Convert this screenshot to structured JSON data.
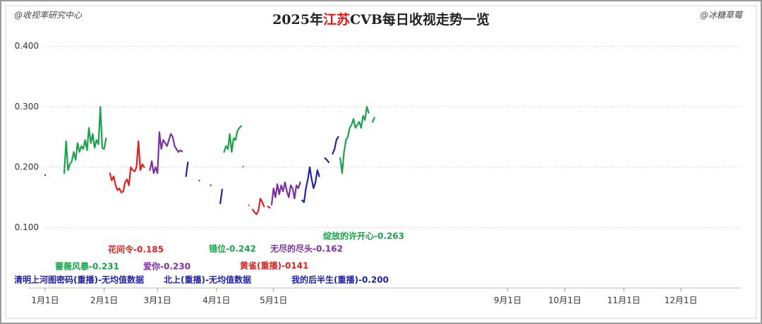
{
  "header": {
    "left": "@收视率研究中心",
    "right": "@冰糖草莓"
  },
  "chart_data": {
    "type": "line",
    "title": [
      "2025年",
      "江苏",
      "CVB每日收视走势一览"
    ],
    "xlim": [
      "1月1日",
      "12月31日"
    ],
    "xticks": [
      "1月1日",
      "2月1日",
      "3月1日",
      "4月1日",
      "5月1日",
      "9月1日",
      "10月1日",
      "11月1日",
      "12月1日"
    ],
    "ylim": [
      0,
      0.43
    ],
    "yticks": [
      {
        "value": 0.1,
        "label": "0.100"
      },
      {
        "value": 0.2,
        "label": "0.200"
      },
      {
        "value": 0.3,
        "label": "0.300"
      },
      {
        "value": 0.4,
        "label": "0.400"
      }
    ],
    "grid": true,
    "series": [
      {
        "color": "#1f22a8",
        "x": [
          "1月1日"
        ],
        "values": [
          0.187
        ]
      },
      {
        "color": "#19a24a",
        "x": [
          "1月11日",
          "1月12日",
          "1月13日",
          "1月14日",
          "1月15日",
          "1月16日",
          "1月17日",
          "1月18日",
          "1月19日",
          "1月20日",
          "1月21日",
          "1月22日",
          "1月23日",
          "1月24日",
          "1月25日",
          "1月26日",
          "1月27日",
          "1月28日",
          "1月29日",
          "1月30日",
          "1月31日",
          "2月1日",
          "2月2日"
        ],
        "values": [
          0.19,
          0.243,
          0.195,
          0.205,
          0.21,
          0.225,
          0.212,
          0.24,
          0.225,
          0.235,
          0.23,
          0.245,
          0.228,
          0.265,
          0.24,
          0.255,
          0.232,
          0.245,
          0.238,
          0.3,
          0.232,
          0.23,
          0.248
        ]
      },
      {
        "color": "#e02020",
        "x": [
          "2月4日",
          "2月5日",
          "2月6日",
          "2月7日",
          "2月8日",
          "2月9日",
          "2月10日",
          "2月11日",
          "2月12日",
          "2月13日",
          "2月14日",
          "2月15日",
          "2月16日",
          "2月17日",
          "2月18日",
          "2月19日",
          "2月20日",
          "2月21日",
          "2月22日"
        ],
        "values": [
          0.19,
          0.178,
          0.185,
          0.17,
          0.162,
          0.165,
          0.158,
          0.16,
          0.175,
          0.18,
          0.17,
          0.2,
          0.195,
          0.193,
          0.2,
          0.243,
          0.195,
          0.205,
          0.2
        ]
      },
      {
        "color": "#7b2fa0",
        "x": [
          "2月25日",
          "2月26日",
          "2月27日",
          "2月28日",
          "3月1日",
          "3月2日",
          "3月3日",
          "3月4日",
          "3月5日",
          "3月6日",
          "3月7日",
          "3月8日",
          "3月9日",
          "3月10日",
          "3月11日",
          "3月12日",
          "3月13日",
          "3月14日"
        ],
        "values": [
          0.195,
          0.21,
          0.19,
          0.2,
          0.19,
          0.258,
          0.23,
          0.245,
          0.24,
          0.235,
          0.245,
          0.255,
          0.25,
          0.235,
          0.23,
          0.225,
          0.228,
          0.226
        ]
      },
      {
        "color": "#1f22a8",
        "x": [
          "3月16日",
          "3月17日",
          "3月18日",
          "3月23日",
          "3月24日",
          "3月29日",
          "3月30日",
          "4月3日",
          "4月4日"
        ],
        "values": [
          0.185,
          0.208,
          null,
          0.178,
          null,
          0.17,
          null,
          0.14,
          0.163
        ]
      },
      {
        "color": "#19a24a",
        "x": [
          "4月5日",
          "4月6日",
          "4月7日",
          "4月8日",
          "4月9日",
          "4月10日",
          "4月11日",
          "4月12日",
          "4月13日",
          "4月14日"
        ],
        "values": [
          0.225,
          0.235,
          0.23,
          0.255,
          0.225,
          0.248,
          0.245,
          0.26,
          0.265,
          0.268
        ]
      },
      {
        "color": "#e02020",
        "x": [
          "4月15日",
          "4月16日",
          "4月18日",
          "4月19日",
          "4月20日",
          "4月21日",
          "4月22日",
          "4月23日",
          "4月24日",
          "4月25日",
          "4月26日",
          "4月27日",
          "4月28日",
          "4月29日"
        ],
        "values": [
          0.201,
          null,
          0.137,
          null,
          0.13,
          0.125,
          0.122,
          0.128,
          0.148,
          0.143,
          0.135,
          null,
          0.135,
          0.133
        ]
      },
      {
        "color": "#7b2fa0",
        "x": [
          "4月30日",
          "5月1日",
          "5月2日",
          "5月3日",
          "5月4日",
          "5月5日",
          "5月6日",
          "5月7日",
          "5月8日",
          "5月9日",
          "5月10日",
          "5月11日",
          "5月12日",
          "5月13日",
          "5月14日",
          "5月15日"
        ],
        "values": [
          0.138,
          0.165,
          0.15,
          0.172,
          0.155,
          0.17,
          0.16,
          0.175,
          0.16,
          0.15,
          0.17,
          0.165,
          0.148,
          0.17,
          0.165,
          0.175
        ]
      },
      {
        "color": "#1f22a8",
        "x": [
          "5月16日",
          "5月17日",
          "5月18日",
          "5月19日",
          "5月20日",
          "5月21日",
          "5月22日",
          "5月23日",
          "5月24日",
          "5月25日",
          "5月26日",
          "5月27日",
          "5月28日",
          "5月29日",
          "5月30日",
          "5月31日",
          "6月1日",
          "6月2日",
          "6月3日",
          "6月4日"
        ],
        "values": [
          0.145,
          0.142,
          0.165,
          0.18,
          0.2,
          0.18,
          0.165,
          0.175,
          0.195,
          0.185,
          null,
          null,
          0.215,
          0.212,
          0.208,
          null,
          0.222,
          0.23,
          0.245,
          0.25
        ]
      },
      {
        "color": "#19a24a",
        "x": [
          "6月5日",
          "6月6日",
          "6月7日",
          "6月8日",
          "6月9日",
          "6月10日",
          "6月11日",
          "6月12日",
          "6月13日",
          "6月14日",
          "6月15日",
          "6月16日",
          "6月17日",
          "6月18日",
          "6月19日",
          "6月20日",
          "6月21日",
          "6月22日",
          "6月23日"
        ],
        "values": [
          0.215,
          0.19,
          0.225,
          0.245,
          0.25,
          0.265,
          0.27,
          0.28,
          0.265,
          0.27,
          0.275,
          0.265,
          0.285,
          0.278,
          0.3,
          0.29,
          null,
          0.275,
          0.282
        ]
      }
    ],
    "annotations": [
      {
        "text": "绽放的许开心-0.263",
        "color": "#19a24a"
      },
      {
        "text": "花间令-0.185",
        "color": "#e02020"
      },
      {
        "text": "错位-0.242",
        "color": "#19a24a"
      },
      {
        "text": "无尽的尽头-0.162",
        "color": "#7b2fa0"
      },
      {
        "text": "蔷薇风暴-0.231",
        "color": "#19a24a"
      },
      {
        "text": "爱你-0.230",
        "color": "#7b2fa0"
      },
      {
        "text": "黄雀(重播)-0141",
        "color": "#e02020"
      },
      {
        "text": "清明上河图密码(重播)-无均值数据",
        "color": "#1f22a8"
      },
      {
        "text": "北上(重播)-无均值数据",
        "color": "#1f22a8"
      },
      {
        "text": "我的后半生(重播)-0.200",
        "color": "#1f22a8"
      }
    ]
  }
}
